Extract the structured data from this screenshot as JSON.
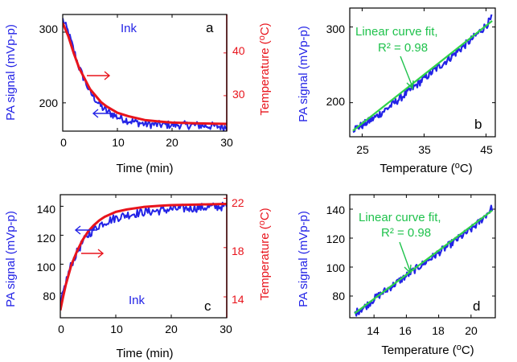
{
  "colors": {
    "signal": "#2323e6",
    "temperature": "#e8141c",
    "fit": "#2fd24a",
    "fit_text": "#1fc24c",
    "axis": "#000000"
  },
  "chart_data": [
    {
      "panel": "a",
      "type": "line",
      "annotation": "Ink",
      "xlabel": "Time (min)",
      "ylabel": "PA signal (mVp-p)",
      "y2label": "Temperature (oC)",
      "xlim": [
        0,
        30
      ],
      "ylim": [
        160,
        325
      ],
      "y2lim": [
        21.7,
        49
      ],
      "xticks": [
        "0",
        "10",
        "20",
        "30"
      ],
      "yticks": [
        "200",
        "300"
      ],
      "y2ticks": [
        "30",
        "40"
      ],
      "series": [
        {
          "axis": "left",
          "x": [
            0,
            1,
            2,
            3,
            4,
            5,
            6,
            7,
            8,
            10,
            12,
            15,
            18,
            20,
            25,
            30
          ],
          "values": [
            318,
            300,
            275,
            250,
            232,
            215,
            205,
            195,
            188,
            180,
            175,
            170,
            169,
            169,
            168,
            166
          ]
        },
        {
          "axis": "right",
          "x": [
            0,
            1,
            2,
            3,
            4,
            5,
            6,
            7,
            8,
            10,
            12,
            15,
            18,
            20,
            25,
            30
          ],
          "values": [
            47,
            44,
            40,
            36.5,
            34,
            31.5,
            30,
            28.5,
            27.5,
            26,
            25.2,
            24.3,
            23.9,
            23.7,
            23.5,
            23.4
          ]
        }
      ]
    },
    {
      "panel": "b",
      "type": "line",
      "annotation_line1": "Linear curve fit,",
      "annotation_line2": "R² = 0.98",
      "xlabel": "Temperature (oC)",
      "ylabel": "PA signal (mVp-p)",
      "xlim": [
        23,
        46.5
      ],
      "ylim": [
        155,
        325
      ],
      "xticks": [
        "25",
        "35",
        "45"
      ],
      "yticks": [
        "200",
        "300"
      ],
      "series": [
        {
          "x": [
            23.5,
            25,
            27,
            29,
            31,
            33,
            35,
            37,
            39,
            41,
            43,
            45,
            46
          ],
          "values": [
            165,
            170,
            180,
            192,
            205,
            218,
            232,
            245,
            258,
            272,
            286,
            302,
            312
          ]
        },
        {
          "x": [
            23.5,
            46
          ],
          "values": [
            163,
            308
          ]
        }
      ]
    },
    {
      "panel": "c",
      "type": "line",
      "annotation": "Ink",
      "xlabel": "Time (min)",
      "ylabel": "PA signal (mVp-p)",
      "y2label": "Temperature (oC)",
      "xlim": [
        0,
        30
      ],
      "ylim": [
        63,
        148
      ],
      "y2lim": [
        12.3,
        22.3
      ],
      "xticks": [
        "0",
        "10",
        "20",
        "30"
      ],
      "yticks": [
        "80",
        "100",
        "120",
        "140"
      ],
      "y2ticks": [
        "14",
        "18",
        "22"
      ],
      "series": [
        {
          "axis": "left",
          "x": [
            0,
            0.5,
            1,
            2,
            3,
            4,
            5,
            6,
            7,
            8,
            10,
            12,
            15,
            18,
            20,
            25,
            30
          ],
          "values": [
            70,
            80,
            88,
            100,
            108,
            115,
            120,
            124,
            127,
            129,
            132,
            134,
            136,
            137,
            138,
            139,
            140
          ]
        },
        {
          "axis": "right",
          "x": [
            0,
            0.5,
            1,
            2,
            3,
            4,
            5,
            6,
            7,
            8,
            10,
            12,
            15,
            18,
            20,
            25,
            30
          ],
          "values": [
            12.9,
            14,
            15,
            16.6,
            17.7,
            18.6,
            19.3,
            19.8,
            20.2,
            20.5,
            20.9,
            21.1,
            21.3,
            21.4,
            21.45,
            21.5,
            21.55
          ]
        }
      ]
    },
    {
      "panel": "d",
      "type": "line",
      "annotation_line1": "Linear curve fit,",
      "annotation_line2": "R² = 0.98",
      "xlabel": "Temperature (oC)",
      "ylabel": "PA signal (mVp-p)",
      "xlim": [
        12.5,
        21.5
      ],
      "ylim": [
        65,
        150
      ],
      "xticks": [
        "14",
        "16",
        "18",
        "20"
      ],
      "yticks": [
        "80",
        "100",
        "120",
        "140"
      ],
      "series": [
        {
          "x": [
            12.8,
            13.5,
            14,
            14.5,
            15,
            15.5,
            16,
            16.5,
            17,
            17.5,
            18,
            18.5,
            19,
            19.5,
            20,
            20.5,
            21,
            21.3
          ],
          "values": [
            68,
            73,
            78,
            82,
            86,
            90,
            94,
            98,
            102,
            106,
            110,
            114,
            118,
            122,
            126,
            131,
            137,
            141
          ]
        },
        {
          "x": [
            12.8,
            21.3
          ],
          "values": [
            68,
            139
          ]
        }
      ]
    }
  ]
}
